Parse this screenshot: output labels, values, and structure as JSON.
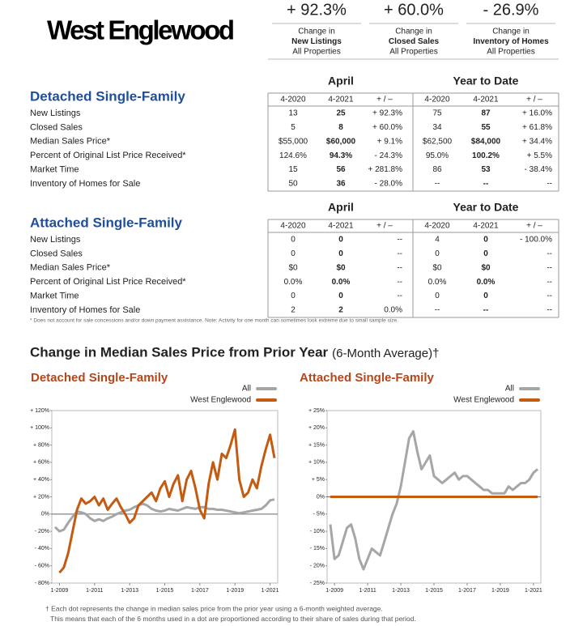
{
  "header": {
    "title": "West Englewood"
  },
  "summary": {
    "items": [
      {
        "value": "+ 92.3%",
        "lines": [
          "Change in",
          "New Listings",
          "All Properties"
        ]
      },
      {
        "value": "+ 60.0%",
        "lines": [
          "Change in",
          "Closed Sales",
          "All Properties"
        ]
      },
      {
        "value": "- 26.9%",
        "lines": [
          "Change in",
          "Inventory of Homes",
          "All Properties"
        ]
      }
    ]
  },
  "tables": [
    {
      "title": "Detached Single-Family",
      "groups": [
        "April",
        "Year to Date"
      ],
      "columns": [
        "4-2020",
        "4-2021",
        "+ / –",
        "4-2020",
        "4-2021",
        "+ / –"
      ],
      "rows": [
        [
          "New Listings",
          "13",
          "25",
          "+ 92.3%",
          "75",
          "87",
          "+ 16.0%"
        ],
        [
          "Closed Sales",
          "5",
          "8",
          "+ 60.0%",
          "34",
          "55",
          "+ 61.8%"
        ],
        [
          "Median Sales Price*",
          "$55,000",
          "$60,000",
          "+ 9.1%",
          "$62,500",
          "$84,000",
          "+ 34.4%"
        ],
        [
          "Percent of Original List Price Received*",
          "124.6%",
          "94.3%",
          "- 24.3%",
          "95.0%",
          "100.2%",
          "+ 5.5%"
        ],
        [
          "Market Time",
          "15",
          "56",
          "+ 281.8%",
          "86",
          "53",
          "- 38.4%"
        ],
        [
          "Inventory of Homes for Sale",
          "50",
          "36",
          "- 28.0%",
          "--",
          "--",
          "--"
        ]
      ]
    },
    {
      "title": "Attached Single-Family",
      "groups": [
        "April",
        "Year to Date"
      ],
      "columns": [
        "4-2020",
        "4-2021",
        "+ / –",
        "4-2020",
        "4-2021",
        "+ / –"
      ],
      "rows": [
        [
          "New Listings",
          "0",
          "0",
          "--",
          "4",
          "0",
          "- 100.0%"
        ],
        [
          "Closed Sales",
          "0",
          "0",
          "--",
          "0",
          "0",
          "--"
        ],
        [
          "Median Sales Price*",
          "$0",
          "$0",
          "--",
          "$0",
          "$0",
          "--"
        ],
        [
          "Percent of Original List Price Received*",
          "0.0%",
          "0.0%",
          "--",
          "0.0%",
          "0.0%",
          "--"
        ],
        [
          "Market Time",
          "0",
          "0",
          "--",
          "0",
          "0",
          "--"
        ],
        [
          "Inventory of Homes for Sale",
          "2",
          "2",
          "0.0%",
          "--",
          "--",
          "--"
        ]
      ]
    }
  ],
  "table_note": "* Does not account for sale concessions and/or down payment assistance. Note: Activity for one month can sometimes look extreme due to small sample size.",
  "chart_section": {
    "title": "Change in Median Sales Price from Prior Year",
    "subtitle": "(6-Month Average)†"
  },
  "chart_data": [
    {
      "type": "line",
      "title": "Detached Single-Family",
      "x": [
        "10-2008",
        "1-2009",
        "4-2009",
        "7-2009",
        "10-2009",
        "1-2010",
        "4-2010",
        "7-2010",
        "10-2010",
        "1-2011",
        "4-2011",
        "7-2011",
        "10-2011",
        "1-2012",
        "4-2012",
        "7-2012",
        "10-2012",
        "1-2013",
        "4-2013",
        "7-2013",
        "10-2013",
        "1-2014",
        "4-2014",
        "7-2014",
        "10-2014",
        "1-2015",
        "4-2015",
        "7-2015",
        "10-2015",
        "1-2016",
        "4-2016",
        "7-2016",
        "10-2016",
        "1-2017",
        "4-2017",
        "7-2017",
        "10-2017",
        "1-2018",
        "4-2018",
        "7-2018",
        "10-2018",
        "1-2019",
        "4-2019",
        "7-2019",
        "10-2019",
        "1-2020",
        "4-2020",
        "7-2020",
        "10-2020",
        "1-2021",
        "4-2021"
      ],
      "xticks": [
        "1-2009",
        "1-2011",
        "1-2013",
        "1-2015",
        "1-2017",
        "1-2019",
        "1-2021"
      ],
      "ylim": [
        -80,
        120
      ],
      "yticks": [
        {
          "value": -80,
          "label": "- 80%"
        },
        {
          "value": -60,
          "label": "- 60%"
        },
        {
          "value": -40,
          "label": "- 40%"
        },
        {
          "value": -20,
          "label": "- 20%"
        },
        {
          "value": 0,
          "label": "0%"
        },
        {
          "value": 20,
          "label": "+ 20%"
        },
        {
          "value": 40,
          "label": "+ 40%"
        },
        {
          "value": 60,
          "label": "+ 60%"
        },
        {
          "value": 80,
          "label": "+ 80%"
        },
        {
          "value": 100,
          "label": "+ 100%"
        },
        {
          "value": 120,
          "label": "+ 120%"
        }
      ],
      "series": [
        {
          "name": "All",
          "color": "#a6a6a6",
          "values": [
            -15,
            -20,
            -18,
            -10,
            -3,
            3,
            2,
            0,
            -5,
            -8,
            -6,
            -8,
            -5,
            -3,
            0,
            2,
            4,
            5,
            8,
            10,
            12,
            10,
            6,
            4,
            3,
            4,
            6,
            5,
            4,
            6,
            8,
            7,
            6,
            8,
            8,
            6,
            6,
            5,
            5,
            4,
            3,
            2,
            1,
            2,
            3,
            4,
            5,
            6,
            10,
            16,
            17
          ]
        },
        {
          "name": "West Englewood",
          "color": "#c55a11",
          "values": [
            null,
            -68,
            -62,
            -45,
            -20,
            5,
            18,
            12,
            15,
            20,
            10,
            18,
            5,
            12,
            18,
            8,
            0,
            -10,
            -5,
            10,
            15,
            20,
            25,
            15,
            30,
            38,
            20,
            35,
            45,
            15,
            40,
            50,
            30,
            5,
            -5,
            35,
            60,
            40,
            70,
            65,
            80,
            98,
            40,
            20,
            25,
            40,
            30,
            55,
            75,
            92,
            65
          ]
        }
      ]
    },
    {
      "type": "line",
      "title": "Attached Single-Family",
      "x": [
        "10-2008",
        "1-2009",
        "4-2009",
        "7-2009",
        "10-2009",
        "1-2010",
        "4-2010",
        "7-2010",
        "10-2010",
        "1-2011",
        "4-2011",
        "7-2011",
        "10-2011",
        "1-2012",
        "4-2012",
        "7-2012",
        "10-2012",
        "1-2013",
        "4-2013",
        "7-2013",
        "10-2013",
        "1-2014",
        "4-2014",
        "7-2014",
        "10-2014",
        "1-2015",
        "4-2015",
        "7-2015",
        "10-2015",
        "1-2016",
        "4-2016",
        "7-2016",
        "10-2016",
        "1-2017",
        "4-2017",
        "7-2017",
        "10-2017",
        "1-2018",
        "4-2018",
        "7-2018",
        "10-2018",
        "1-2019",
        "4-2019",
        "7-2019",
        "10-2019",
        "1-2020",
        "4-2020",
        "7-2020",
        "10-2020",
        "1-2021",
        "4-2021"
      ],
      "xticks": [
        "1-2009",
        "1-2011",
        "1-2013",
        "1-2015",
        "1-2017",
        "1-2019",
        "1-2021"
      ],
      "ylim": [
        -25,
        25
      ],
      "yticks": [
        {
          "value": -25,
          "label": "- 25%"
        },
        {
          "value": -20,
          "label": "- 20%"
        },
        {
          "value": -15,
          "label": "- 15%"
        },
        {
          "value": -10,
          "label": "- 10%"
        },
        {
          "value": -5,
          "label": "- 5%"
        },
        {
          "value": 0,
          "label": "0%"
        },
        {
          "value": 5,
          "label": "+ 5%"
        },
        {
          "value": 10,
          "label": "+ 10%"
        },
        {
          "value": 15,
          "label": "+ 15%"
        },
        {
          "value": 20,
          "label": "+ 20%"
        },
        {
          "value": 25,
          "label": "+ 25%"
        }
      ],
      "series": [
        {
          "name": "All",
          "color": "#a6a6a6",
          "values": [
            -8,
            -18,
            -17,
            -13,
            -9,
            -8,
            -12,
            -18,
            -21,
            -18,
            -15,
            -16,
            -17,
            -13,
            -9,
            -5,
            -2,
            3,
            10,
            17,
            19,
            13,
            8,
            10,
            12,
            6,
            5,
            4,
            5,
            6,
            7,
            5,
            6,
            6,
            5,
            4,
            3,
            2,
            2,
            1,
            1,
            1,
            1,
            3,
            2,
            3,
            4,
            4,
            5,
            7,
            8
          ]
        },
        {
          "name": "West Englewood",
          "color": "#c55a11",
          "values": [
            0,
            0,
            0,
            0,
            0,
            0,
            0,
            0,
            0,
            0,
            0,
            0,
            0,
            0,
            0,
            0,
            0,
            0,
            0,
            0,
            0,
            0,
            0,
            0,
            0,
            0,
            0,
            0,
            0,
            0,
            0,
            0,
            0,
            0,
            0,
            0,
            0,
            0,
            0,
            0,
            0,
            0,
            0,
            0,
            0,
            0,
            0,
            0,
            0,
            0,
            0
          ]
        }
      ]
    }
  ],
  "footnotes": [
    "† Each dot represents the change in median sales price from the prior year using a 6-month weighted average.",
    "This means that each of the 6 months used in a dot are proportioned according to their share of sales during that period."
  ]
}
